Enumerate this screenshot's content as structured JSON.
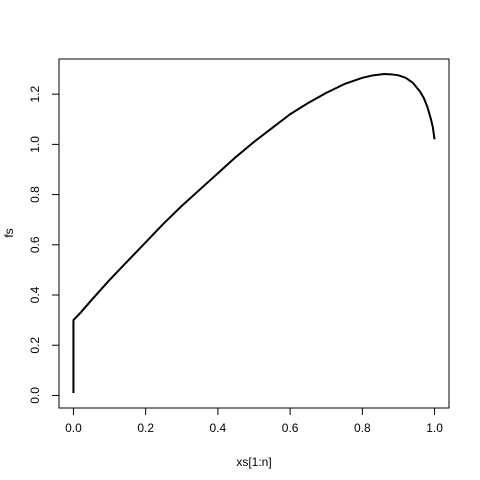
{
  "chart_data": {
    "type": "line",
    "xlabel": "xs[1:n]",
    "ylabel": "fs",
    "xlim": [
      -0.04,
      1.04
    ],
    "ylim": [
      -0.05,
      1.34
    ],
    "x_ticks": [
      0.0,
      0.2,
      0.4,
      0.6,
      0.8,
      1.0
    ],
    "x_tick_labels": [
      "0.0",
      "0.2",
      "0.4",
      "0.6",
      "0.8",
      "1.0"
    ],
    "y_ticks": [
      0.0,
      0.2,
      0.4,
      0.6,
      0.8,
      1.0,
      1.2
    ],
    "y_tick_labels": [
      "0.0",
      "0.2",
      "0.4",
      "0.6",
      "0.8",
      "1.0",
      "1.2"
    ],
    "grid": false,
    "box": true,
    "color": "#000000",
    "series": [
      {
        "x": [
          0.0,
          0.0,
          0.01,
          0.02,
          0.05,
          0.1,
          0.15,
          0.2,
          0.25,
          0.3,
          0.35,
          0.4,
          0.45,
          0.5,
          0.55,
          0.6,
          0.65,
          0.7,
          0.75,
          0.8,
          0.83,
          0.86,
          0.88,
          0.9,
          0.92,
          0.94,
          0.96,
          0.97,
          0.98,
          0.99,
          0.995,
          1.0
        ],
        "y": [
          0.01,
          0.3,
          0.315,
          0.33,
          0.38,
          0.46,
          0.535,
          0.61,
          0.685,
          0.755,
          0.82,
          0.885,
          0.95,
          1.01,
          1.065,
          1.12,
          1.165,
          1.205,
          1.24,
          1.265,
          1.275,
          1.28,
          1.279,
          1.275,
          1.265,
          1.245,
          1.21,
          1.185,
          1.15,
          1.1,
          1.07,
          1.02
        ]
      }
    ]
  }
}
